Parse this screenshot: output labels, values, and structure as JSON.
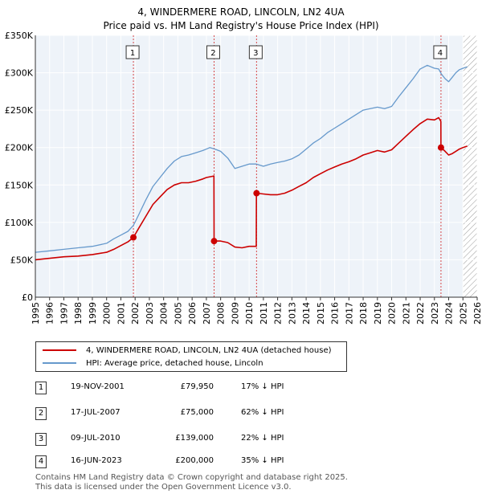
{
  "title": "4, WINDERMERE ROAD, LINCOLN, LN2 4UA",
  "subtitle": "Price paid vs. HM Land Registry's House Price Index (HPI)",
  "colors": {
    "red": "#cc0000",
    "blue": "#6699cc",
    "grid": "#ffffff",
    "plot_bg": "#eef3f9",
    "marker_line": "#cc0000"
  },
  "legend": {
    "items": [
      {
        "label": "4, WINDERMERE ROAD, LINCOLN, LN2 4UA (detached house)",
        "color": "#cc0000"
      },
      {
        "label": "HPI: Average price, detached house, Lincoln",
        "color": "#6699cc"
      }
    ]
  },
  "transactions": [
    {
      "num": "1",
      "date": "19-NOV-2001",
      "price": "£79,950",
      "hpi": "17% ↓ HPI"
    },
    {
      "num": "2",
      "date": "17-JUL-2007",
      "price": "£75,000",
      "hpi": "62% ↓ HPI"
    },
    {
      "num": "3",
      "date": "09-JUL-2010",
      "price": "£139,000",
      "hpi": "22% ↓ HPI"
    },
    {
      "num": "4",
      "date": "16-JUN-2023",
      "price": "£200,000",
      "hpi": "35% ↓ HPI"
    }
  ],
  "footer": {
    "line1": "Contains HM Land Registry data © Crown copyright and database right 2025.",
    "line2": "This data is licensed under the Open Government Licence v3.0."
  },
  "chart_data": {
    "type": "line",
    "title": "4, WINDERMERE ROAD, LINCOLN, LN2 4UA",
    "xlabel": "",
    "ylabel": "",
    "xlim": [
      1995,
      2026
    ],
    "ylim": [
      0,
      350000
    ],
    "y_ticks": [
      0,
      50000,
      100000,
      150000,
      200000,
      250000,
      300000,
      350000
    ],
    "y_tick_labels": [
      "£0",
      "£50K",
      "£100K",
      "£150K",
      "£200K",
      "£250K",
      "£300K",
      "£350K"
    ],
    "x_ticks": [
      1995,
      1996,
      1997,
      1998,
      1999,
      2000,
      2001,
      2002,
      2003,
      2004,
      2005,
      2006,
      2007,
      2008,
      2009,
      2010,
      2011,
      2012,
      2013,
      2014,
      2015,
      2016,
      2017,
      2018,
      2019,
      2020,
      2021,
      2022,
      2023,
      2024,
      2025,
      2026
    ],
    "x_tick_labels": [
      "1995",
      "1996",
      "1997",
      "1998",
      "1999",
      "2000",
      "2001",
      "2002",
      "2003",
      "2004",
      "2005",
      "2006",
      "2007",
      "2008",
      "2009",
      "2010",
      "2011",
      "2012",
      "2013",
      "2014",
      "2015",
      "2016",
      "2017",
      "2018",
      "2019",
      "2020",
      "2021",
      "2022",
      "2023",
      "2024",
      "2025",
      "2026"
    ],
    "hatch_from": 2025.0,
    "series": [
      {
        "name": "HPI: Average price, detached house, Lincoln",
        "color": "#6699cc",
        "x": [
          1995.0,
          1996.0,
          1997.0,
          1998.0,
          1999.0,
          2000.0,
          2000.5,
          2001.0,
          2001.5,
          2001.88,
          2002.25,
          2002.75,
          2003.25,
          2003.75,
          2004.25,
          2004.75,
          2005.25,
          2005.75,
          2006.25,
          2006.75,
          2007.25,
          2007.6,
          2008.0,
          2008.5,
          2009.0,
          2009.5,
          2010.0,
          2010.5,
          2011.0,
          2011.5,
          2012.0,
          2012.5,
          2013.0,
          2013.5,
          2014.0,
          2014.5,
          2015.0,
          2015.5,
          2016.0,
          2016.5,
          2017.0,
          2017.5,
          2018.0,
          2018.5,
          2019.0,
          2019.5,
          2020.0,
          2020.5,
          2021.0,
          2021.5,
          2022.0,
          2022.5,
          2023.0,
          2023.3,
          2023.5,
          2023.75,
          2024.0,
          2024.25,
          2024.5,
          2024.75,
          2025.0,
          2025.3
        ],
        "values": [
          60000,
          62000,
          64000,
          66000,
          68000,
          72000,
          78000,
          83000,
          88000,
          96000,
          110000,
          130000,
          148000,
          160000,
          172000,
          182000,
          188000,
          190000,
          193000,
          196000,
          200000,
          198000,
          195000,
          186000,
          172000,
          175000,
          178000,
          178000,
          175000,
          178000,
          180000,
          182000,
          185000,
          190000,
          198000,
          206000,
          212000,
          220000,
          226000,
          232000,
          238000,
          244000,
          250000,
          252000,
          254000,
          252000,
          255000,
          268000,
          280000,
          292000,
          305000,
          310000,
          306000,
          305000,
          298000,
          292000,
          288000,
          294000,
          300000,
          304000,
          306000,
          308000
        ]
      },
      {
        "name": "4, WINDERMERE ROAD, LINCOLN, LN2 4UA (detached house)",
        "color": "#cc0000",
        "x": [
          1995.0,
          1996.0,
          1997.0,
          1998.0,
          1999.0,
          2000.0,
          2000.5,
          2001.0,
          2001.5,
          2001.88,
          2002.25,
          2002.75,
          2003.25,
          2003.75,
          2004.25,
          2004.75,
          2005.25,
          2005.75,
          2006.25,
          2006.75,
          2007.0,
          2007.53,
          2007.54,
          2008.0,
          2008.5,
          2009.0,
          2009.5,
          2010.0,
          2010.5,
          2010.51,
          2011.0,
          2011.5,
          2012.0,
          2012.5,
          2013.0,
          2013.5,
          2014.0,
          2014.5,
          2015.0,
          2015.5,
          2016.0,
          2016.5,
          2017.0,
          2017.5,
          2018.0,
          2018.5,
          2019.0,
          2019.5,
          2020.0,
          2020.5,
          2021.0,
          2021.5,
          2022.0,
          2022.5,
          2023.0,
          2023.3,
          2023.45,
          2023.46,
          2023.75,
          2024.0,
          2024.25,
          2024.5,
          2024.75,
          2025.0,
          2025.3
        ],
        "values": [
          50000,
          52000,
          54000,
          55000,
          57000,
          60000,
          64000,
          69000,
          74000,
          79950,
          92000,
          108000,
          124000,
          134000,
          144000,
          150000,
          153000,
          153000,
          155000,
          158000,
          160000,
          162000,
          75000,
          75000,
          73000,
          67000,
          66000,
          68000,
          68000,
          139000,
          138000,
          137000,
          137000,
          139000,
          143000,
          148000,
          153000,
          160000,
          165000,
          170000,
          174000,
          178000,
          181000,
          185000,
          190000,
          193000,
          196000,
          194000,
          197000,
          206000,
          215000,
          224000,
          232000,
          238000,
          237000,
          240000,
          235000,
          200000,
          195000,
          190000,
          192000,
          195000,
          198000,
          200000,
          202000
        ]
      }
    ],
    "sale_markers": [
      {
        "label": "1",
        "x": 2001.88,
        "value": 79950
      },
      {
        "label": "2",
        "x": 2007.54,
        "value": 75000
      },
      {
        "label": "3",
        "x": 2010.52,
        "value": 139000
      },
      {
        "label": "4",
        "x": 2023.46,
        "value": 200000
      }
    ]
  }
}
